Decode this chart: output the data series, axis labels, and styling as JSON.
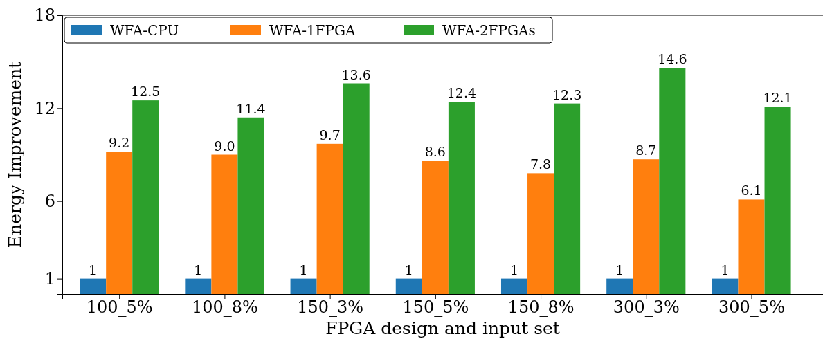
{
  "chart_data": {
    "type": "bar",
    "xlabel": "FPGA design and input set",
    "ylabel": "Energy Improvement",
    "categories": [
      "100_5%",
      "100_8%",
      "150_3%",
      "150_5%",
      "150_8%",
      "300_3%",
      "300_5%"
    ],
    "series": [
      {
        "name": "WFA-CPU",
        "color": "#1f77b4",
        "values": [
          1,
          1,
          1,
          1,
          1,
          1,
          1
        ],
        "value_labels": [
          "1",
          "1",
          "1",
          "1",
          "1",
          "1",
          "1"
        ]
      },
      {
        "name": "WFA-1FPGA",
        "color": "#ff7f0e",
        "values": [
          9.2,
          9.0,
          9.7,
          8.6,
          7.8,
          8.7,
          6.1
        ],
        "value_labels": [
          "9.2",
          "9.0",
          "9.7",
          "8.6",
          "7.8",
          "8.7",
          "6.1"
        ]
      },
      {
        "name": "WFA-2FPGAs",
        "color": "#2ca02c",
        "values": [
          12.5,
          11.4,
          13.6,
          12.4,
          12.3,
          14.6,
          12.1
        ],
        "value_labels": [
          "12.5",
          "11.4",
          "13.6",
          "12.4",
          "12.3",
          "14.6",
          "12.1"
        ]
      }
    ],
    "ylim": [
      0,
      18
    ],
    "yticks": [
      1,
      6,
      12,
      18
    ],
    "legend": "top left",
    "grid": false
  }
}
